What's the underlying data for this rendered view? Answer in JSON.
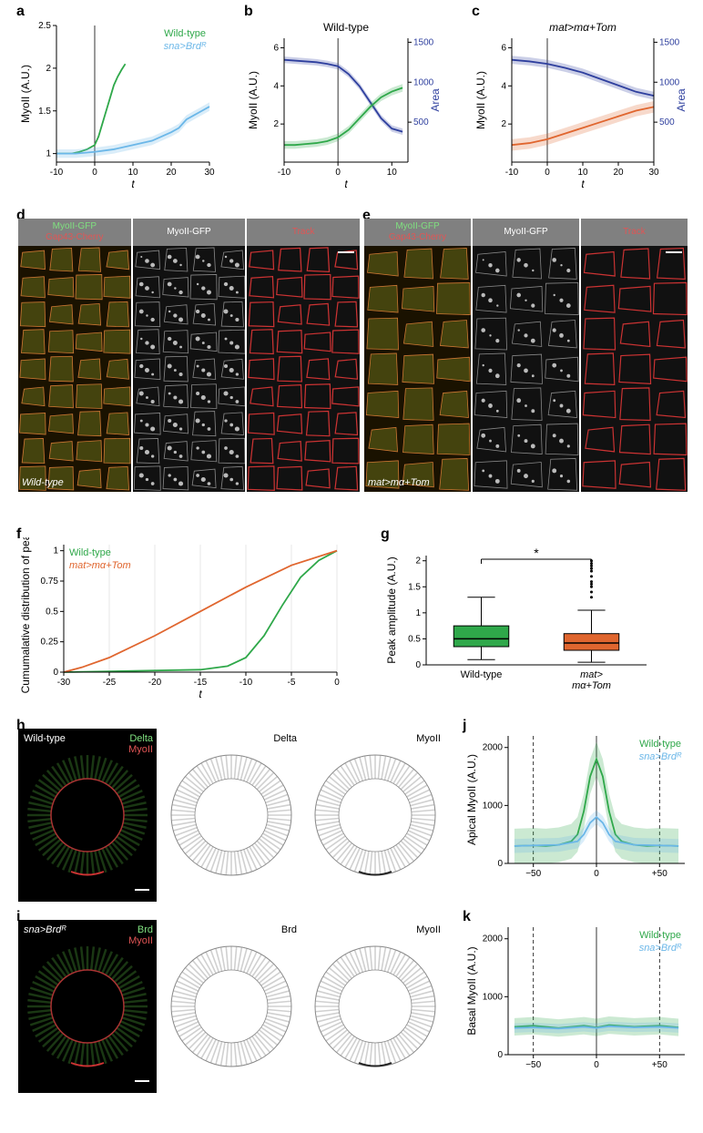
{
  "panels": {
    "a": {
      "label": "a",
      "ylabel": "MyoII (A.U.)",
      "xlabel": "t",
      "xlim": [
        -10,
        30
      ],
      "ylim": [
        0.9,
        2.5
      ],
      "xticks": [
        -10,
        0,
        10,
        20,
        30
      ],
      "yticks": [
        1,
        1.5,
        2,
        2.5
      ],
      "series": [
        {
          "name": "Wild-type",
          "color": "#2fa84a",
          "x": [
            -10,
            -8,
            -6,
            -4,
            -2,
            0,
            1,
            2,
            3,
            4,
            5,
            6,
            7,
            8
          ],
          "y": [
            1.0,
            1.0,
            1.0,
            1.02,
            1.05,
            1.1,
            1.2,
            1.35,
            1.5,
            1.65,
            1.8,
            1.9,
            1.98,
            2.05
          ]
        },
        {
          "name": "sna>Brdᴿ",
          "color": "#6bb7e8",
          "x": [
            -10,
            -5,
            0,
            5,
            10,
            15,
            20,
            22,
            24,
            26,
            28,
            30
          ],
          "y": [
            1.0,
            1.0,
            1.02,
            1.05,
            1.1,
            1.15,
            1.25,
            1.3,
            1.4,
            1.45,
            1.5,
            1.55
          ],
          "band": 0.05
        }
      ],
      "legend_pos": "top-right"
    },
    "b": {
      "label": "b",
      "title": "Wild-type",
      "ylabel": "MyoII (A.U.)",
      "y2label": "Area",
      "xlabel": "t",
      "xlim": [
        -10,
        13
      ],
      "ylim": [
        0,
        6.5
      ],
      "y2lim": [
        0,
        1550
      ],
      "xticks": [
        -10,
        0,
        10
      ],
      "yticks": [
        2,
        4,
        6
      ],
      "y2ticks": [
        500,
        1000,
        1500
      ],
      "series": [
        {
          "name": "Area",
          "color": "#2e3f9e",
          "axis": "y2",
          "x": [
            -10,
            -8,
            -6,
            -4,
            -2,
            0,
            2,
            4,
            6,
            8,
            10,
            12
          ],
          "y": [
            1280,
            1270,
            1260,
            1250,
            1230,
            1200,
            1100,
            950,
            750,
            550,
            420,
            380
          ],
          "band": 40
        },
        {
          "name": "MyoII",
          "color": "#2fa84a",
          "axis": "y",
          "x": [
            -10,
            -8,
            -6,
            -4,
            -2,
            0,
            2,
            4,
            6,
            8,
            10,
            12
          ],
          "y": [
            0.9,
            0.9,
            0.95,
            1.0,
            1.1,
            1.3,
            1.7,
            2.3,
            2.9,
            3.4,
            3.7,
            3.9
          ],
          "band": 0.2
        }
      ]
    },
    "c": {
      "label": "c",
      "title": "mat>mα+Tom",
      "title_italic": true,
      "ylabel": "MyoII (A.U.)",
      "y2label": "Area",
      "xlabel": "t",
      "xlim": [
        -10,
        30
      ],
      "ylim": [
        0,
        6.5
      ],
      "y2lim": [
        0,
        1550
      ],
      "xticks": [
        -10,
        0,
        10,
        20,
        30
      ],
      "yticks": [
        2,
        4,
        6
      ],
      "y2ticks": [
        500,
        1000,
        1500
      ],
      "series": [
        {
          "name": "Area",
          "color": "#2e3f9e",
          "axis": "y2",
          "x": [
            -10,
            -5,
            0,
            5,
            10,
            15,
            20,
            25,
            30
          ],
          "y": [
            1280,
            1260,
            1230,
            1180,
            1120,
            1040,
            960,
            880,
            830
          ],
          "band": 50
        },
        {
          "name": "MyoII",
          "color": "#e0662f",
          "axis": "y",
          "x": [
            -10,
            -5,
            0,
            5,
            10,
            15,
            20,
            25,
            30
          ],
          "y": [
            0.9,
            1.0,
            1.2,
            1.5,
            1.8,
            2.1,
            2.4,
            2.7,
            2.9
          ],
          "band": 0.3
        }
      ]
    },
    "d": {
      "label": "d",
      "headers": [
        {
          "lines": [
            "MyoII-GFP",
            "Gap43-Cherry"
          ],
          "colors": [
            "#7fe07f",
            "#e05555"
          ]
        },
        {
          "lines": [
            "MyoII-GFP"
          ],
          "colors": [
            "#ffffff"
          ]
        },
        {
          "lines": [
            "Track"
          ],
          "colors": [
            "#e05555"
          ]
        }
      ],
      "caption": "Wild-type"
    },
    "e": {
      "label": "e",
      "headers": [
        {
          "lines": [
            "MyoII-GFP",
            "Gap43-Cherry"
          ],
          "colors": [
            "#7fe07f",
            "#e05555"
          ]
        },
        {
          "lines": [
            "MyoII-GFP"
          ],
          "colors": [
            "#ffffff"
          ]
        },
        {
          "lines": [
            "Track"
          ],
          "colors": [
            "#e05555"
          ]
        }
      ],
      "caption": "mat>mα+Tom"
    },
    "f": {
      "label": "f",
      "ylabel": "Cumumalative distribution of peaks",
      "xlabel": "t",
      "xlim": [
        -30,
        0
      ],
      "ylim": [
        0,
        1.05
      ],
      "xticks": [
        -30,
        -25,
        -20,
        -15,
        -10,
        -5,
        0
      ],
      "yticks": [
        0,
        0.25,
        0.5,
        0.75,
        1
      ],
      "grid_x": [
        -30,
        -25,
        -20,
        -15,
        -10,
        -5,
        0
      ],
      "series": [
        {
          "name": "Wild-type",
          "color": "#2fa84a",
          "x": [
            -30,
            -15,
            -12,
            -10,
            -8,
            -6,
            -4,
            -2,
            0
          ],
          "y": [
            0,
            0.02,
            0.05,
            0.12,
            0.3,
            0.55,
            0.78,
            0.92,
            1.0
          ]
        },
        {
          "name": "mat>mα+Tom",
          "color": "#e0662f",
          "x": [
            -30,
            -28,
            -25,
            -20,
            -15,
            -10,
            -5,
            0
          ],
          "y": [
            0,
            0.04,
            0.12,
            0.3,
            0.5,
            0.7,
            0.88,
            1.0
          ]
        }
      ],
      "legend_pos": "top-left"
    },
    "g": {
      "label": "g",
      "ylabel": "Peak amplitude (A.U.)",
      "ylim": [
        0,
        2.1
      ],
      "yticks": [
        0,
        0.5,
        1,
        1.5,
        2
      ],
      "categories": [
        "Wild-type",
        "mat>\nmα+Tom"
      ],
      "sig_label": "*",
      "boxes": [
        {
          "color": "#2fa84a",
          "q1": 0.35,
          "median": 0.5,
          "q3": 0.75,
          "wlo": 0.1,
          "whi": 1.3,
          "outliers": []
        },
        {
          "color": "#e0662f",
          "q1": 0.28,
          "median": 0.42,
          "q3": 0.6,
          "wlo": 0.05,
          "whi": 1.05,
          "outliers": [
            1.3,
            1.4,
            1.5,
            1.55,
            1.6,
            1.7,
            1.8,
            1.85,
            1.9,
            1.95,
            2.0
          ]
        }
      ]
    },
    "h": {
      "label": "h",
      "caption": "Wild-type",
      "labels_dark": [
        {
          "text": "Delta",
          "color": "#7fe07f"
        },
        {
          "text": "MyoII",
          "color": "#e05555"
        }
      ],
      "sub_labels": [
        "Delta",
        "MyoII"
      ]
    },
    "i": {
      "label": "i",
      "caption": "sna>Brdᴿ",
      "labels_dark": [
        {
          "text": "Brd",
          "color": "#7fe07f"
        },
        {
          "text": "MyoII",
          "color": "#e05555"
        }
      ],
      "sub_labels": [
        "Brd",
        "MyoII"
      ]
    },
    "j": {
      "label": "j",
      "ylabel": "Apical MyoII (A.U.)",
      "xlim": [
        -70,
        70
      ],
      "ylim": [
        0,
        2200
      ],
      "xticks": [
        -50,
        0,
        50
      ],
      "xtick_labels": [
        "−50",
        "0",
        "+50"
      ],
      "yticks": [
        0,
        1000,
        2000
      ],
      "vlines": [
        -50,
        50
      ],
      "series": [
        {
          "name": "Wild-type",
          "color": "#2fa84a",
          "x": [
            -65,
            -50,
            -40,
            -30,
            -20,
            -15,
            -10,
            -5,
            0,
            5,
            10,
            15,
            20,
            30,
            40,
            50,
            65
          ],
          "y": [
            300,
            310,
            300,
            320,
            380,
            500,
            900,
            1500,
            1800,
            1500,
            900,
            500,
            380,
            320,
            300,
            310,
            300
          ],
          "band": 300
        },
        {
          "name": "sna>Brdᴿ",
          "color": "#6bb7e8",
          "x": [
            -65,
            -50,
            -30,
            -15,
            -10,
            -5,
            0,
            5,
            10,
            15,
            30,
            50,
            65
          ],
          "y": [
            300,
            310,
            320,
            380,
            500,
            700,
            800,
            700,
            500,
            380,
            320,
            310,
            300
          ],
          "band": 120
        }
      ],
      "legend_pos": "top-right"
    },
    "k": {
      "label": "k",
      "ylabel": "Basal MyoII (A.U.)",
      "xlim": [
        -70,
        70
      ],
      "ylim": [
        0,
        2200
      ],
      "xticks": [
        -50,
        0,
        50
      ],
      "xtick_labels": [
        "−50",
        "0",
        "+50"
      ],
      "yticks": [
        0,
        1000,
        2000
      ],
      "vlines": [
        -50,
        50
      ],
      "series": [
        {
          "name": "Wild-type",
          "color": "#2fa84a",
          "x": [
            -65,
            -50,
            -30,
            -10,
            0,
            10,
            30,
            50,
            65
          ],
          "y": [
            480,
            500,
            460,
            500,
            470,
            510,
            480,
            500,
            470
          ],
          "band": 150
        },
        {
          "name": "sna>Brdᴿ",
          "color": "#6bb7e8",
          "x": [
            -65,
            -50,
            -30,
            -10,
            0,
            10,
            30,
            50,
            65
          ],
          "y": [
            460,
            470,
            450,
            480,
            460,
            490,
            470,
            480,
            460
          ],
          "band": 80
        }
      ],
      "legend_pos": "top-right"
    }
  },
  "colors": {
    "axis": "#000000",
    "grid": "#cccccc",
    "header_bg": "#808080"
  },
  "fonts": {
    "axis_label": 12,
    "tick": 10,
    "title": 12,
    "legend": 11
  }
}
